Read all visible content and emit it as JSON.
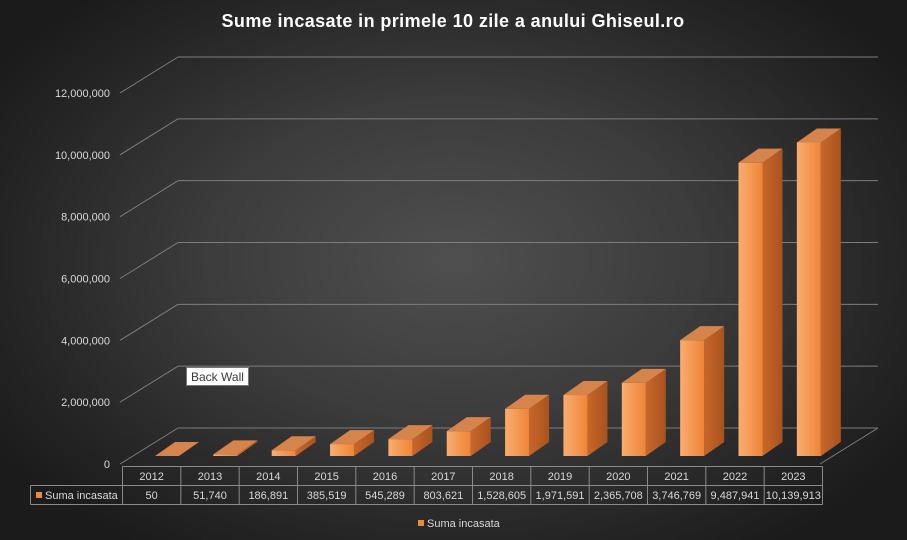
{
  "chart_data": {
    "type": "bar",
    "style": "3d-column",
    "title": "Sume incasate in primele 10 zile a anului Ghiseul.ro",
    "xlabel": "",
    "ylabel": "",
    "categories": [
      "2012",
      "2013",
      "2014",
      "2015",
      "2016",
      "2017",
      "2018",
      "2019",
      "2020",
      "2021",
      "2022",
      "2023"
    ],
    "series": [
      {
        "name": "Suma incasata",
        "values": [
          50,
          51740,
          186891,
          385519,
          545289,
          803621,
          1528605,
          1971591,
          2365708,
          3746769,
          9487941,
          10139913
        ]
      }
    ],
    "ylim": [
      0,
      12000000
    ],
    "y_ticks": [
      0,
      2000000,
      4000000,
      6000000,
      8000000,
      10000000,
      12000000
    ],
    "y_tick_labels": [
      "0",
      "2,000,000",
      "4,000,000",
      "6,000,000",
      "8,000,000",
      "10,000,000",
      "12,000,000"
    ],
    "grid": true,
    "legend": {
      "position": "bottom",
      "entries": [
        "Suma incasata"
      ]
    },
    "data_table": {
      "row_label": "Suma incasata",
      "values": [
        "50",
        "51,740",
        "186,891",
        "385,519",
        "545,289",
        "803,621",
        "1,528,605",
        "1,971,591",
        "2,365,708",
        "3,746,769",
        "9,487,941",
        "10,139,913"
      ]
    }
  },
  "tooltip": {
    "text": "Back Wall"
  },
  "colors": {
    "bar_front_light": "#f9ad70",
    "bar_front_dark": "#ee8536",
    "bar_side_light": "#c8672c",
    "bar_side_dark": "#a9521d",
    "bar_top": "#d5844b",
    "legend_key": "#f0883c"
  }
}
